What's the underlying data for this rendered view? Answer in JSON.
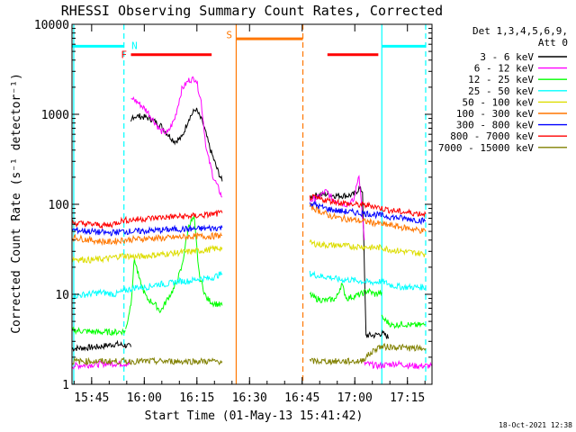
{
  "chart_data": {
    "type": "line",
    "title": "RHESSI Observing Summary Count Rates, Corrected",
    "xlabel": "Start Time (01-May-13 15:41:42)",
    "ylabel": "Corrected Count Rate (s⁻¹ detector⁻¹)",
    "y_scale": "log",
    "ylim": [
      1,
      10000
    ],
    "xlim_minutes": [
      -2.3,
      100.3
    ],
    "x_ticks": [
      {
        "t": 3.3,
        "label": "15:45"
      },
      {
        "t": 18.3,
        "label": "16:00"
      },
      {
        "t": 33.3,
        "label": "16:15"
      },
      {
        "t": 48.3,
        "label": "16:30"
      },
      {
        "t": 63.3,
        "label": "16:45"
      },
      {
        "t": 78.3,
        "label": "17:00"
      },
      {
        "t": 93.3,
        "label": "17:15"
      }
    ],
    "y_ticks": [
      {
        "v": 1,
        "label": "1"
      },
      {
        "v": 10,
        "label": "10"
      },
      {
        "v": 100,
        "label": "100"
      },
      {
        "v": 1000,
        "label": "1000"
      },
      {
        "v": 10000,
        "label": "10000"
      }
    ],
    "legend_header": [
      "Det 1,3,4,5,6,9,",
      "Att 0"
    ],
    "legend_position": "right",
    "timestamp": "18-Oct-2021 12:38",
    "series": [
      {
        "name": "3 - 6 keV",
        "color": "#000000",
        "segments": [
          {
            "x": [
              -2.3,
              5,
              10,
              13,
              14.5
            ],
            "y": [
              2.5,
              2.6,
              2.8,
              2.7,
              2.6
            ]
          },
          {
            "x": [
              14.5,
              15,
              17,
              20,
              23,
              25,
              27,
              29,
              31,
              33,
              35,
              37,
              39,
              40.5
            ],
            "y": [
              800,
              950,
              950,
              900,
              750,
              600,
              500,
              550,
              900,
              1150,
              800,
              420,
              250,
              180
            ]
          },
          {
            "x": [
              65.5,
              67,
              70,
              73,
              76,
              78,
              79.5,
              80.5,
              81.5
            ],
            "y": [
              120,
              125,
              130,
              125,
              125,
              128,
              150,
              140,
              3.5
            ]
          },
          {
            "x": [
              81.5,
              84,
              86,
              87,
              88
            ],
            "y": [
              3.5,
              3.5,
              3.7,
              3.5,
              3.3
            ]
          }
        ]
      },
      {
        "name": "6 - 12 keV",
        "color": "#ff00ff",
        "segments": [
          {
            "x": [
              -2.3,
              8,
              14.5
            ],
            "y": [
              1.6,
              1.7,
              1.7
            ]
          },
          {
            "x": [
              14.5,
              15,
              17,
              19,
              21,
              23,
              25,
              27,
              29,
              31,
              33,
              34.5,
              36,
              38,
              40.5
            ],
            "y": [
              1400,
              1500,
              1300,
              1100,
              850,
              650,
              620,
              900,
              1900,
              2400,
              2500,
              1400,
              400,
              200,
              120
            ]
          },
          {
            "x": [
              65.5,
              68,
              70,
              72,
              74,
              76,
              78,
              79.5,
              80.2,
              81
            ],
            "y": [
              110,
              120,
              140,
              115,
              105,
              100,
              110,
              220,
              100,
              40
            ]
          },
          {
            "x": [
              81,
              85,
              90,
              95,
              100.3
            ],
            "y": [
              1.7,
              1.6,
              1.7,
              1.6,
              1.6
            ]
          }
        ]
      },
      {
        "name": "12 - 25 keV",
        "color": "#00ff00",
        "segments": [
          {
            "x": [
              -2.3,
              5,
              10,
              13
            ],
            "y": [
              4,
              3.8,
              3.8,
              3.9
            ]
          },
          {
            "x": [
              13,
              14.5,
              15.5,
              17,
              19,
              21,
              23,
              25,
              27,
              29,
              31,
              32.5,
              34,
              36,
              38,
              40.5
            ],
            "y": [
              4,
              8,
              25,
              14,
              9,
              8,
              6.5,
              9,
              12,
              20,
              60,
              70,
              16,
              9,
              8,
              7.5
            ]
          },
          {
            "x": [
              65.5,
              67,
              70,
              73,
              74.5,
              76,
              78,
              80,
              82,
              84,
              86
            ],
            "y": [
              10,
              9,
              8.5,
              9,
              13,
              9,
              9.5,
              10,
              11,
              10,
              10.5
            ]
          },
          {
            "x": [
              86,
              89,
              92,
              95,
              98.5
            ],
            "y": [
              5.5,
              4.5,
              4.7,
              4.5,
              4.6
            ]
          }
        ]
      },
      {
        "name": "25 - 50 keV",
        "color": "#00ffff",
        "segments": [
          {
            "x": [
              -2.3,
              2,
              6,
              10,
              13,
              16,
              19,
              22,
              25,
              28,
              31,
              34,
              37,
              40.5
            ],
            "y": [
              9.5,
              10,
              10.5,
              10,
              11,
              12,
              12,
              13,
              13,
              14,
              14,
              15,
              15,
              17
            ]
          },
          {
            "x": [
              65.5,
              68,
              71,
              74,
              77,
              80,
              83,
              86,
              89,
              92,
              95,
              98.5
            ],
            "y": [
              17,
              16,
              15.5,
              14.5,
              14.5,
              14,
              13.5,
              14,
              12.5,
              12,
              12,
              12
            ]
          }
        ]
      },
      {
        "name": "50 - 100 keV",
        "color": "#dddd00",
        "segments": [
          {
            "x": [
              -2.3,
              3,
              8,
              12,
              16,
              20,
              24,
              28,
              32,
              36,
              40.5
            ],
            "y": [
              25,
              24,
              25,
              27,
              26,
              27,
              28,
              29,
              30,
              31,
              33
            ]
          },
          {
            "x": [
              65.5,
              68,
              71,
              74,
              77,
              80,
              83,
              86,
              89,
              92,
              95,
              98.5
            ],
            "y": [
              37,
              36,
              35,
              35,
              34,
              34,
              33,
              33,
              31,
              30,
              29,
              28
            ]
          }
        ]
      },
      {
        "name": "100 - 300 keV",
        "color": "#ff7700",
        "segments": [
          {
            "x": [
              -2.3,
              3,
              8,
              12,
              16,
              20,
              24,
              28,
              32,
              36,
              40.5
            ],
            "y": [
              43,
              40,
              38,
              40,
              41,
              42,
              42,
              43,
              44,
              44,
              45
            ]
          },
          {
            "x": [
              65.5,
              68,
              71,
              74,
              77,
              80,
              83,
              86,
              89,
              92,
              95,
              98.5
            ],
            "y": [
              95,
              85,
              75,
              70,
              68,
              65,
              63,
              60,
              58,
              55,
              53,
              50
            ]
          }
        ]
      },
      {
        "name": "300 - 800 keV",
        "color": "#0000ff",
        "segments": [
          {
            "x": [
              -2.3,
              3,
              8,
              12,
              16,
              20,
              24,
              28,
              32,
              36,
              40.5
            ],
            "y": [
              52,
              50,
              48,
              50,
              50,
              51,
              52,
              53,
              53,
              54,
              55
            ]
          },
          {
            "x": [
              65.5,
              68,
              71,
              74,
              77,
              80,
              83,
              86,
              89,
              92,
              95,
              98.5
            ],
            "y": [
              105,
              95,
              88,
              84,
              82,
              80,
              78,
              75,
              72,
              70,
              68,
              65
            ]
          }
        ]
      },
      {
        "name": "800 - 7000 keV",
        "color": "#ff0000",
        "segments": [
          {
            "x": [
              -2.3,
              3,
              8,
              12,
              16,
              20,
              24,
              28,
              32,
              36,
              40.5
            ],
            "y": [
              62,
              60,
              58,
              66,
              68,
              70,
              72,
              73,
              74,
              76,
              80
            ]
          },
          {
            "x": [
              65.5,
              68,
              71,
              74,
              77,
              80,
              83,
              86,
              89,
              92,
              95,
              98.5
            ],
            "y": [
              120,
              115,
              110,
              105,
              100,
              98,
              97,
              90,
              85,
              82,
              80,
              78
            ]
          }
        ]
      },
      {
        "name": "7000 - 15000 keV",
        "color": "#808000",
        "segments": [
          {
            "x": [
              -2.3,
              5,
              10,
              15,
              20,
              25,
              30,
              35,
              40.5
            ],
            "y": [
              1.8,
              1.8,
              1.8,
              1.8,
              1.8,
              1.8,
              1.8,
              1.8,
              1.8
            ]
          },
          {
            "x": [
              65.5,
              70,
              75,
              80,
              85,
              90,
              95,
              98.5
            ],
            "y": [
              1.8,
              1.8,
              1.8,
              1.8,
              2.6,
              2.6,
              2.5,
              2.5
            ]
          }
        ]
      }
    ],
    "annotations": [
      {
        "type": "flag-bar",
        "label": "",
        "color": "#00ffff",
        "x0": -2.3,
        "x1": 12.5,
        "y": 5700
      },
      {
        "type": "flag-bar",
        "label": "",
        "color": "#00ffff",
        "x0": 86,
        "x1": 98.5,
        "y": 5700
      },
      {
        "type": "flag-bar",
        "label": "",
        "color": "#ff0000",
        "x0": 14.5,
        "x1": 37.5,
        "y": 4600
      },
      {
        "type": "flag-bar",
        "label": "",
        "color": "#ff0000",
        "x0": 70.5,
        "x1": 85,
        "y": 4600
      },
      {
        "type": "flag-bar",
        "label": "",
        "color": "#ff7700",
        "x0": 44.5,
        "x1": 63.5,
        "y": 6900
      },
      {
        "type": "flag-label",
        "label": "N",
        "color": "#00ffff",
        "x": 15.5,
        "y": 5800
      },
      {
        "type": "flag-label",
        "label": "F",
        "color": "#ff0000",
        "x": 12.5,
        "y": 4600
      },
      {
        "type": "flag-label",
        "label": "S",
        "color": "#ff7700",
        "x": 42.5,
        "y": 7700
      },
      {
        "type": "vline",
        "color": "#00ffff",
        "style": "dashed",
        "x": 12.5
      },
      {
        "type": "vline",
        "color": "#00ffff",
        "style": "solid",
        "x": -1.8
      },
      {
        "type": "vline",
        "color": "#ff7700",
        "style": "solid",
        "x": 44.5
      },
      {
        "type": "vline",
        "color": "#ff7700",
        "style": "dashed",
        "x": 63.5
      },
      {
        "type": "vline",
        "color": "#00ffff",
        "style": "solid",
        "x": 86
      },
      {
        "type": "vline",
        "color": "#00ffff",
        "style": "dashed",
        "x": 98.5
      }
    ]
  }
}
